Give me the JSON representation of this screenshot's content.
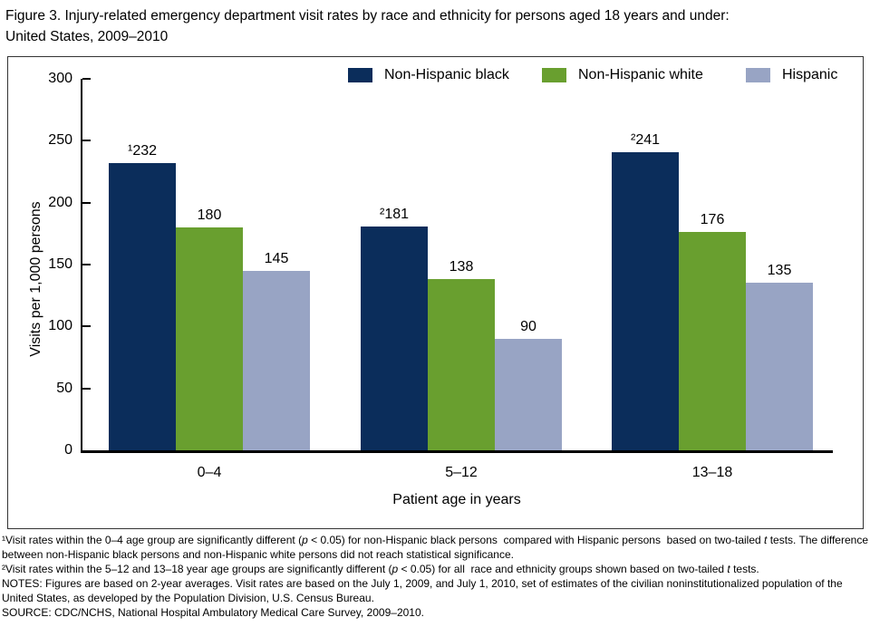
{
  "title": {
    "line1": "Figure 3. Injury-related emergency department visit rates by race and ethnicity for persons aged 18 years and under:",
    "line2": "United States, 2009–2010"
  },
  "chart_data": {
    "type": "bar",
    "categories": [
      "0–4",
      "5–12",
      "13–18"
    ],
    "series": [
      {
        "name": "Non-Hispanic black",
        "color": "#0b2d5b",
        "values": [
          232,
          181,
          241
        ],
        "bar_labels": [
          "¹232",
          "²181",
          "²241"
        ]
      },
      {
        "name": "Non-Hispanic white",
        "color": "#699f2f",
        "values": [
          180,
          138,
          176
        ],
        "bar_labels": [
          "180",
          "138",
          "176"
        ]
      },
      {
        "name": "Hispanic",
        "color": "#98a4c4",
        "values": [
          145,
          90,
          135
        ],
        "bar_labels": [
          "145",
          "90",
          "135"
        ]
      }
    ],
    "xlabel": "Patient age in years",
    "ylabel": "Visits per 1,000 persons",
    "ylim": [
      0,
      300
    ],
    "yticks": [
      0,
      50,
      100,
      150,
      200,
      250,
      300
    ],
    "grid": false,
    "legend_position": "top"
  },
  "footnotes": [
    {
      "segments": [
        {
          "t": "¹Visit rates within the 0–4 age group are significantly different ("
        },
        {
          "t": "p",
          "i": true
        },
        {
          "t": " < 0.05) for non-Hispanic black persons  compared with Hispanic persons  based on two-tailed "
        },
        {
          "t": "t",
          "i": true
        },
        {
          "t": " tests. The difference between non-Hispanic black persons and non-Hispanic white persons did not reach statistical significance."
        }
      ]
    },
    {
      "segments": [
        {
          "t": "²Visit rates within the 5–12 and 13–18 year age groups are significantly different ("
        },
        {
          "t": "p",
          "i": true
        },
        {
          "t": " < 0.05) for all  race and ethnicity groups shown based on two-tailed "
        },
        {
          "t": "t",
          "i": true
        },
        {
          "t": " tests."
        }
      ]
    },
    {
      "segments": [
        {
          "t": "NOTES: Figures are based on 2-year averages. Visit rates are based on the July 1, 2009, and July 1, 2010, set of estimates of the civilian noninstitutionalized population of the United States, as developed by the Population Division, U.S. Census Bureau."
        }
      ]
    },
    {
      "segments": [
        {
          "t": "SOURCE: CDC/NCHS, National Hospital Ambulatory Medical Care Survey, 2009–2010."
        }
      ]
    }
  ]
}
